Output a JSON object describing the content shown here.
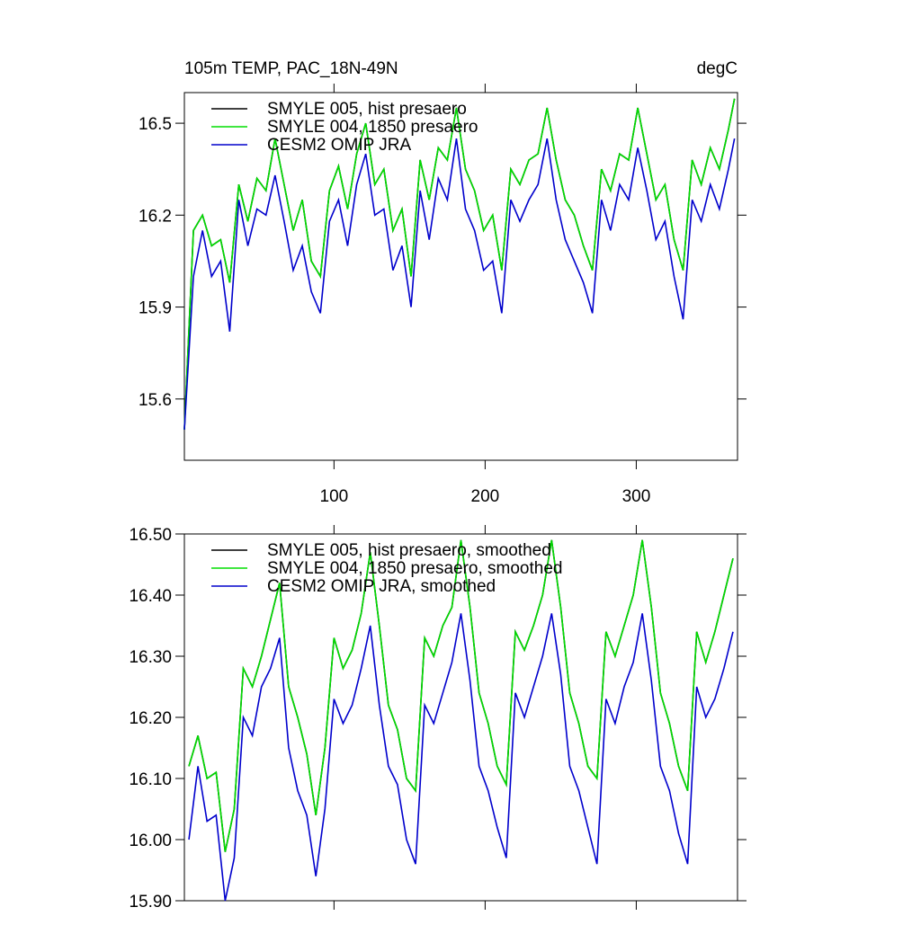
{
  "chart_data": [
    {
      "type": "line",
      "title": "105m TEMP, PAC_18N-49N",
      "units": "degC",
      "x": [
        1,
        7,
        13,
        19,
        25,
        31,
        37,
        43,
        49,
        55,
        61,
        67,
        73,
        79,
        85,
        91,
        97,
        103,
        109,
        115,
        121,
        127,
        133,
        139,
        145,
        151,
        157,
        163,
        169,
        175,
        181,
        187,
        193,
        199,
        205,
        211,
        217,
        223,
        229,
        235,
        241,
        247,
        253,
        259,
        265,
        271,
        277,
        283,
        289,
        295,
        301,
        307,
        313,
        319,
        325,
        331,
        337,
        343,
        349,
        355,
        361,
        365
      ],
      "xlim": [
        1,
        367
      ],
      "xticks": [
        100,
        200,
        300
      ],
      "ylim": [
        15.4,
        16.6
      ],
      "yticks": [
        15.6,
        15.9,
        16.2,
        16.5
      ],
      "legend": "upper-left",
      "series": [
        {
          "name": "SMYLE 005, hist presaero",
          "color": "#000000",
          "values": [
            15.5,
            16.15,
            16.2,
            16.1,
            16.12,
            15.98,
            16.3,
            16.18,
            16.32,
            16.28,
            16.45,
            16.3,
            16.15,
            16.25,
            16.05,
            16.0,
            16.28,
            16.36,
            16.22,
            16.4,
            16.5,
            16.3,
            16.35,
            16.15,
            16.22,
            16.0,
            16.38,
            16.25,
            16.42,
            16.38,
            16.55,
            16.35,
            16.28,
            16.15,
            16.2,
            16.02,
            16.35,
            16.3,
            16.38,
            16.4,
            16.55,
            16.38,
            16.25,
            16.2,
            16.1,
            16.02,
            16.35,
            16.28,
            16.4,
            16.38,
            16.55,
            16.4,
            16.25,
            16.3,
            16.12,
            16.02,
            16.38,
            16.3,
            16.42,
            16.35,
            16.48,
            16.58
          ]
        },
        {
          "name": "SMYLE 004, 1850 presaero",
          "color": "#00dd00",
          "values": [
            15.5,
            16.15,
            16.2,
            16.1,
            16.12,
            15.98,
            16.3,
            16.18,
            16.32,
            16.28,
            16.45,
            16.3,
            16.15,
            16.25,
            16.05,
            16.0,
            16.28,
            16.36,
            16.22,
            16.4,
            16.5,
            16.3,
            16.35,
            16.15,
            16.22,
            16.0,
            16.38,
            16.25,
            16.42,
            16.38,
            16.55,
            16.35,
            16.28,
            16.15,
            16.2,
            16.02,
            16.35,
            16.3,
            16.38,
            16.4,
            16.55,
            16.38,
            16.25,
            16.2,
            16.1,
            16.02,
            16.35,
            16.28,
            16.4,
            16.38,
            16.55,
            16.4,
            16.25,
            16.3,
            16.12,
            16.02,
            16.38,
            16.3,
            16.42,
            16.35,
            16.48,
            16.58
          ]
        },
        {
          "name": "CESM2 OMIP JRA",
          "color": "#0000cc",
          "values": [
            15.5,
            16.0,
            16.15,
            16.0,
            16.05,
            15.82,
            16.25,
            16.1,
            16.22,
            16.2,
            16.33,
            16.18,
            16.02,
            16.1,
            15.95,
            15.88,
            16.18,
            16.25,
            16.1,
            16.3,
            16.4,
            16.2,
            16.22,
            16.02,
            16.1,
            15.9,
            16.28,
            16.12,
            16.32,
            16.25,
            16.45,
            16.22,
            16.15,
            16.02,
            16.05,
            15.88,
            16.25,
            16.18,
            16.25,
            16.3,
            16.45,
            16.25,
            16.12,
            16.05,
            15.98,
            15.88,
            16.25,
            16.15,
            16.3,
            16.25,
            16.42,
            16.28,
            16.12,
            16.18,
            16.0,
            15.86,
            16.25,
            16.18,
            16.3,
            16.22,
            16.35,
            16.45
          ]
        }
      ]
    },
    {
      "type": "line",
      "x": [
        4,
        10,
        16,
        22,
        28,
        34,
        40,
        46,
        52,
        58,
        64,
        70,
        76,
        82,
        88,
        94,
        100,
        106,
        112,
        118,
        124,
        130,
        136,
        142,
        148,
        154,
        160,
        166,
        172,
        178,
        184,
        190,
        196,
        202,
        208,
        214,
        220,
        226,
        232,
        238,
        244,
        250,
        256,
        262,
        268,
        274,
        280,
        286,
        292,
        298,
        304,
        310,
        316,
        322,
        328,
        334,
        340,
        346,
        352,
        358,
        364
      ],
      "xlim": [
        1,
        367
      ],
      "xticks": [
        100,
        200,
        300
      ],
      "ylim": [
        15.9,
        16.5
      ],
      "yticks": [
        {
          "value": 15.9,
          "label": "15.90"
        },
        {
          "value": 16.0,
          "label": "16.00"
        },
        {
          "value": 16.1,
          "label": "16.10"
        },
        {
          "value": 16.2,
          "label": "16.20"
        },
        {
          "value": 16.3,
          "label": "16.30"
        },
        {
          "value": 16.4,
          "label": "16.40"
        },
        {
          "value": 16.5,
          "label": "16.50"
        }
      ],
      "legend": "upper-left",
      "series": [
        {
          "name": "SMYLE 005, hist presaero, smoothed",
          "color": "#000000",
          "values": [
            16.12,
            16.17,
            16.1,
            16.11,
            15.98,
            16.05,
            16.28,
            16.25,
            16.3,
            16.36,
            16.42,
            16.25,
            16.2,
            16.14,
            16.04,
            16.15,
            16.33,
            16.28,
            16.31,
            16.37,
            16.47,
            16.35,
            16.22,
            16.18,
            16.1,
            16.08,
            16.33,
            16.3,
            16.35,
            16.38,
            16.49,
            16.38,
            16.24,
            16.19,
            16.12,
            16.09,
            16.34,
            16.31,
            16.35,
            16.4,
            16.49,
            16.38,
            16.24,
            16.19,
            16.12,
            16.1,
            16.34,
            16.3,
            16.35,
            16.4,
            16.49,
            16.38,
            16.24,
            16.19,
            16.12,
            16.08,
            16.34,
            16.29,
            16.34,
            16.4,
            16.46
          ]
        },
        {
          "name": "SMYLE 004, 1850 presaero, smoothed",
          "color": "#00dd00",
          "values": [
            16.12,
            16.17,
            16.1,
            16.11,
            15.98,
            16.05,
            16.28,
            16.25,
            16.3,
            16.36,
            16.42,
            16.25,
            16.2,
            16.14,
            16.04,
            16.15,
            16.33,
            16.28,
            16.31,
            16.37,
            16.47,
            16.35,
            16.22,
            16.18,
            16.1,
            16.08,
            16.33,
            16.3,
            16.35,
            16.38,
            16.49,
            16.38,
            16.24,
            16.19,
            16.12,
            16.09,
            16.34,
            16.31,
            16.35,
            16.4,
            16.49,
            16.38,
            16.24,
            16.19,
            16.12,
            16.1,
            16.34,
            16.3,
            16.35,
            16.4,
            16.49,
            16.38,
            16.24,
            16.19,
            16.12,
            16.08,
            16.34,
            16.29,
            16.34,
            16.4,
            16.46
          ]
        },
        {
          "name": "CESM2 OMIP JRA, smoothed",
          "color": "#0000cc",
          "values": [
            16.0,
            16.12,
            16.03,
            16.04,
            15.9,
            15.97,
            16.2,
            16.17,
            16.25,
            16.28,
            16.33,
            16.15,
            16.08,
            16.04,
            15.94,
            16.05,
            16.23,
            16.19,
            16.22,
            16.28,
            16.35,
            16.22,
            16.12,
            16.09,
            16.0,
            15.96,
            16.22,
            16.19,
            16.24,
            16.29,
            16.37,
            16.26,
            16.12,
            16.08,
            16.02,
            15.97,
            16.24,
            16.2,
            16.25,
            16.3,
            16.37,
            16.27,
            16.12,
            16.08,
            16.02,
            15.96,
            16.23,
            16.19,
            16.25,
            16.29,
            16.37,
            16.26,
            16.12,
            16.08,
            16.01,
            15.96,
            16.25,
            16.2,
            16.23,
            16.28,
            16.34
          ]
        }
      ]
    }
  ]
}
